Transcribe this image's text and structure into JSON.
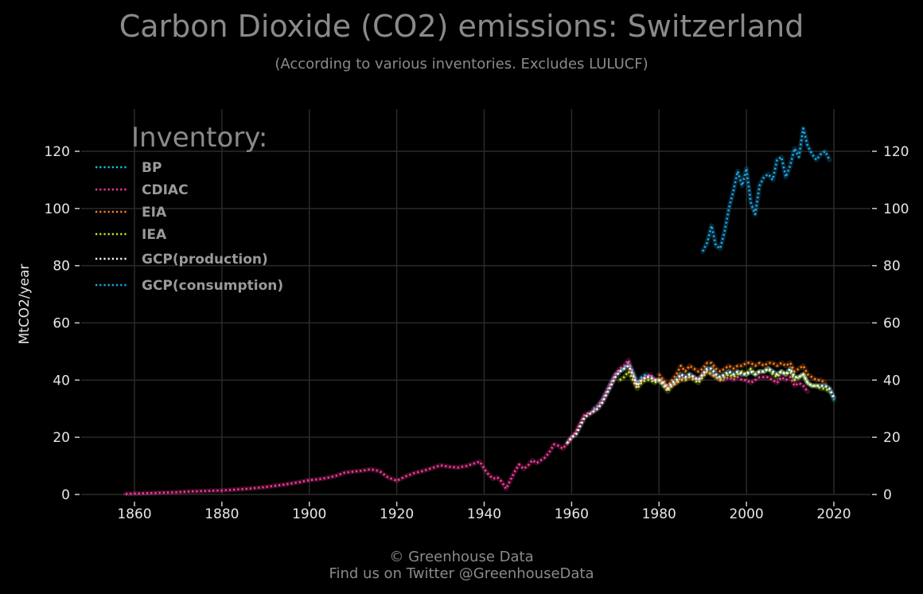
{
  "chart_data": {
    "type": "line",
    "title": "Carbon Dioxide (CO2) emissions: Switzerland",
    "subtitle": "(According to various inventories. Excludes LULUCF)",
    "ylabel": "MtCO2/year",
    "xlabel": "",
    "xlim": [
      1850,
      2028
    ],
    "ylim": [
      0,
      135
    ],
    "x_ticks": [
      1860,
      1880,
      1900,
      1920,
      1940,
      1960,
      1980,
      2000,
      2020
    ],
    "y_ticks": [
      0,
      20,
      40,
      60,
      80,
      100,
      120
    ],
    "grid": true,
    "legend_title": "Inventory:",
    "legend_position": "top-left",
    "colors": {
      "background": "#000000",
      "grid": "#2a2a2a",
      "BP": "#19c3d6",
      "CDIAC": "#ff3d9e",
      "EIA": "#ff7f1e",
      "IEA": "#c8e61e",
      "GCP_production": "#ffffff",
      "GCP_consumption": "#1aa8e8"
    },
    "series": [
      {
        "name": "BP",
        "color_key": "BP",
        "x": [
          1965,
          1966,
          1967,
          1968,
          1969,
          1970,
          1971,
          1972,
          1973,
          1974,
          1975,
          1976,
          1977,
          1978,
          1979,
          1980,
          1981,
          1982,
          1983,
          1984,
          1985,
          1986,
          1987,
          1988,
          1989,
          1990,
          1991,
          1992,
          1993,
          1994,
          1995,
          1996,
          1997,
          1998,
          1999,
          2000,
          2001,
          2002,
          2003,
          2004,
          2005,
          2006,
          2007,
          2008,
          2009,
          2010,
          2011,
          2012,
          2013,
          2014,
          2015,
          2016,
          2017,
          2018,
          2019,
          2020
        ],
        "y": [
          30,
          31,
          33,
          36,
          39,
          42,
          43,
          44,
          46,
          43,
          39,
          41,
          42,
          41,
          40,
          40,
          38,
          37,
          39,
          40,
          42,
          41,
          42,
          41,
          40,
          42,
          44,
          44,
          42,
          41,
          42,
          43,
          42,
          43,
          42,
          42,
          43,
          42,
          43,
          43,
          44,
          43,
          42,
          43,
          42,
          44,
          41,
          41,
          42,
          39,
          38,
          38,
          38,
          38,
          37,
          33
        ]
      },
      {
        "name": "CDIAC",
        "color_key": "CDIAC",
        "x": [
          1858,
          1860,
          1862,
          1864,
          1866,
          1868,
          1870,
          1872,
          1874,
          1876,
          1878,
          1880,
          1882,
          1884,
          1886,
          1888,
          1890,
          1892,
          1894,
          1896,
          1898,
          1900,
          1902,
          1904,
          1906,
          1908,
          1910,
          1912,
          1914,
          1916,
          1918,
          1920,
          1922,
          1924,
          1926,
          1928,
          1930,
          1932,
          1934,
          1936,
          1938,
          1939,
          1940,
          1941,
          1942,
          1943,
          1944,
          1945,
          1946,
          1947,
          1948,
          1949,
          1950,
          1951,
          1952,
          1953,
          1954,
          1955,
          1956,
          1957,
          1958,
          1959,
          1960,
          1961,
          1962,
          1963,
          1964,
          1965,
          1966,
          1967,
          1968,
          1969,
          1970,
          1971,
          1972,
          1973,
          1974,
          1975,
          1976,
          1977,
          1978,
          1979,
          1980,
          1981,
          1982,
          1983,
          1984,
          1985,
          1986,
          1987,
          1988,
          1989,
          1990,
          1991,
          1992,
          1993,
          1994,
          1995,
          1996,
          1997,
          1998,
          1999,
          2000,
          2001,
          2002,
          2003,
          2004,
          2005,
          2006,
          2007,
          2008,
          2009,
          2010,
          2011,
          2012,
          2013,
          2014
        ],
        "y": [
          0.2,
          0.3,
          0.4,
          0.5,
          0.6,
          0.7,
          0.8,
          1.0,
          1.1,
          1.2,
          1.3,
          1.4,
          1.6,
          1.8,
          2.0,
          2.3,
          2.6,
          3.0,
          3.4,
          3.9,
          4.4,
          5.0,
          5.3,
          5.8,
          6.5,
          7.6,
          8.0,
          8.3,
          8.8,
          8.2,
          6.0,
          4.8,
          6.3,
          7.5,
          8.2,
          9.2,
          10.2,
          9.7,
          9.4,
          10.0,
          11.0,
          11.5,
          9.0,
          7.0,
          5.5,
          6.0,
          4.5,
          2.0,
          5.0,
          8.0,
          10.5,
          9.0,
          10.0,
          12.0,
          11.0,
          12.0,
          13.0,
          15.0,
          17.5,
          17.0,
          16.0,
          18.0,
          20.0,
          22.0,
          25.0,
          28.0,
          28.5,
          29.0,
          31.0,
          33.0,
          36.0,
          39.0,
          42.0,
          44.0,
          45.0,
          47.0,
          42.0,
          38.0,
          40.0,
          41.0,
          42.0,
          40.0,
          40.0,
          39.0,
          37.0,
          38.0,
          39.0,
          41.0,
          40.0,
          41.0,
          41.0,
          40.0,
          42.0,
          43.0,
          42.0,
          41.0,
          40.0,
          40.0,
          41.0,
          40.0,
          41.0,
          40.0,
          40.0,
          39.0,
          40.0,
          41.0,
          41.0,
          41.0,
          40.0,
          39.0,
          41.0,
          40.0,
          41.0,
          38.0,
          39.0,
          38.0,
          36.0
        ]
      },
      {
        "name": "EIA",
        "color_key": "EIA",
        "x": [
          1980,
          1981,
          1982,
          1983,
          1984,
          1985,
          1986,
          1987,
          1988,
          1989,
          1990,
          1991,
          1992,
          1993,
          1994,
          1995,
          1996,
          1997,
          1998,
          1999,
          2000,
          2001,
          2002,
          2003,
          2004,
          2005,
          2006,
          2007,
          2008,
          2009,
          2010,
          2011,
          2012,
          2013,
          2014,
          2015,
          2016,
          2017,
          2018
        ],
        "y": [
          42,
          40,
          38,
          40,
          42,
          45,
          43,
          45,
          44,
          43,
          44,
          46,
          46,
          44,
          43,
          44,
          45,
          44,
          45,
          45,
          46,
          46,
          45,
          46,
          45,
          46,
          46,
          45,
          46,
          45,
          46,
          43,
          44,
          45,
          42,
          41,
          40,
          40,
          39
        ]
      },
      {
        "name": "IEA",
        "color_key": "IEA",
        "x": [
          1971,
          1972,
          1973,
          1974,
          1975,
          1976,
          1977,
          1978,
          1979,
          1980,
          1981,
          1982,
          1983,
          1984,
          1985,
          1986,
          1987,
          1988,
          1989,
          1990,
          1991,
          1992,
          1993,
          1994,
          1995,
          1996,
          1997,
          1998,
          1999,
          2000,
          2001,
          2002,
          2003,
          2004,
          2005,
          2006,
          2007,
          2008,
          2009,
          2010,
          2011,
          2012,
          2013,
          2014,
          2015,
          2016,
          2017,
          2018,
          2019
        ],
        "y": [
          40,
          41,
          43,
          40,
          37,
          39,
          40,
          40,
          39,
          40,
          38,
          36,
          38,
          39,
          40,
          40,
          41,
          40,
          39,
          41,
          43,
          42,
          41,
          40,
          41,
          42,
          41,
          42,
          43,
          42,
          44,
          42,
          43,
          43,
          44,
          42,
          41,
          43,
          42,
          43,
          40,
          41,
          42,
          39,
          38,
          38,
          37,
          37,
          36
        ]
      },
      {
        "name": "GCP(production)",
        "color_key": "GCP_production",
        "x": [
          1959,
          1960,
          1961,
          1962,
          1963,
          1964,
          1965,
          1966,
          1967,
          1968,
          1969,
          1970,
          1971,
          1972,
          1973,
          1974,
          1975,
          1976,
          1977,
          1978,
          1979,
          1980,
          1981,
          1982,
          1983,
          1984,
          1985,
          1986,
          1987,
          1988,
          1989,
          1990,
          1991,
          1992,
          1993,
          1994,
          1995,
          1996,
          1997,
          1998,
          1999,
          2000,
          2001,
          2002,
          2003,
          2004,
          2005,
          2006,
          2007,
          2008,
          2009,
          2010,
          2011,
          2012,
          2013,
          2014,
          2015,
          2016,
          2017,
          2018,
          2019,
          2020
        ],
        "y": [
          18,
          20,
          21,
          24,
          27,
          28,
          29,
          30,
          32,
          35,
          38,
          41,
          43,
          44,
          45,
          42,
          38,
          40,
          41,
          41,
          40,
          40,
          39,
          37,
          39,
          40,
          42,
          41,
          42,
          41,
          40,
          42,
          44,
          44,
          42,
          41,
          42,
          43,
          42,
          43,
          42,
          42,
          43,
          42,
          43,
          43,
          44,
          43,
          42,
          43,
          42,
          44,
          41,
          41,
          42,
          39,
          38,
          38,
          38,
          38,
          37,
          34
        ]
      },
      {
        "name": "GCP(consumption)",
        "color_key": "GCP_consumption",
        "x": [
          1990,
          1991,
          1992,
          1993,
          1994,
          1995,
          1996,
          1997,
          1998,
          1999,
          2000,
          2001,
          2002,
          2003,
          2004,
          2005,
          2006,
          2007,
          2008,
          2009,
          2010,
          2011,
          2012,
          2013,
          2014,
          2015,
          2016,
          2017,
          2018,
          2019
        ],
        "y": [
          85,
          88,
          94,
          87,
          86,
          92,
          100,
          106,
          113,
          108,
          114,
          102,
          98,
          108,
          111,
          112,
          110,
          117,
          118,
          111,
          115,
          121,
          118,
          128,
          122,
          119,
          117,
          119,
          120,
          117
        ]
      }
    ]
  },
  "footer": {
    "credit_line1": "© Greenhouse Data",
    "credit_line2": "Find us on Twitter @GreenhouseData"
  }
}
